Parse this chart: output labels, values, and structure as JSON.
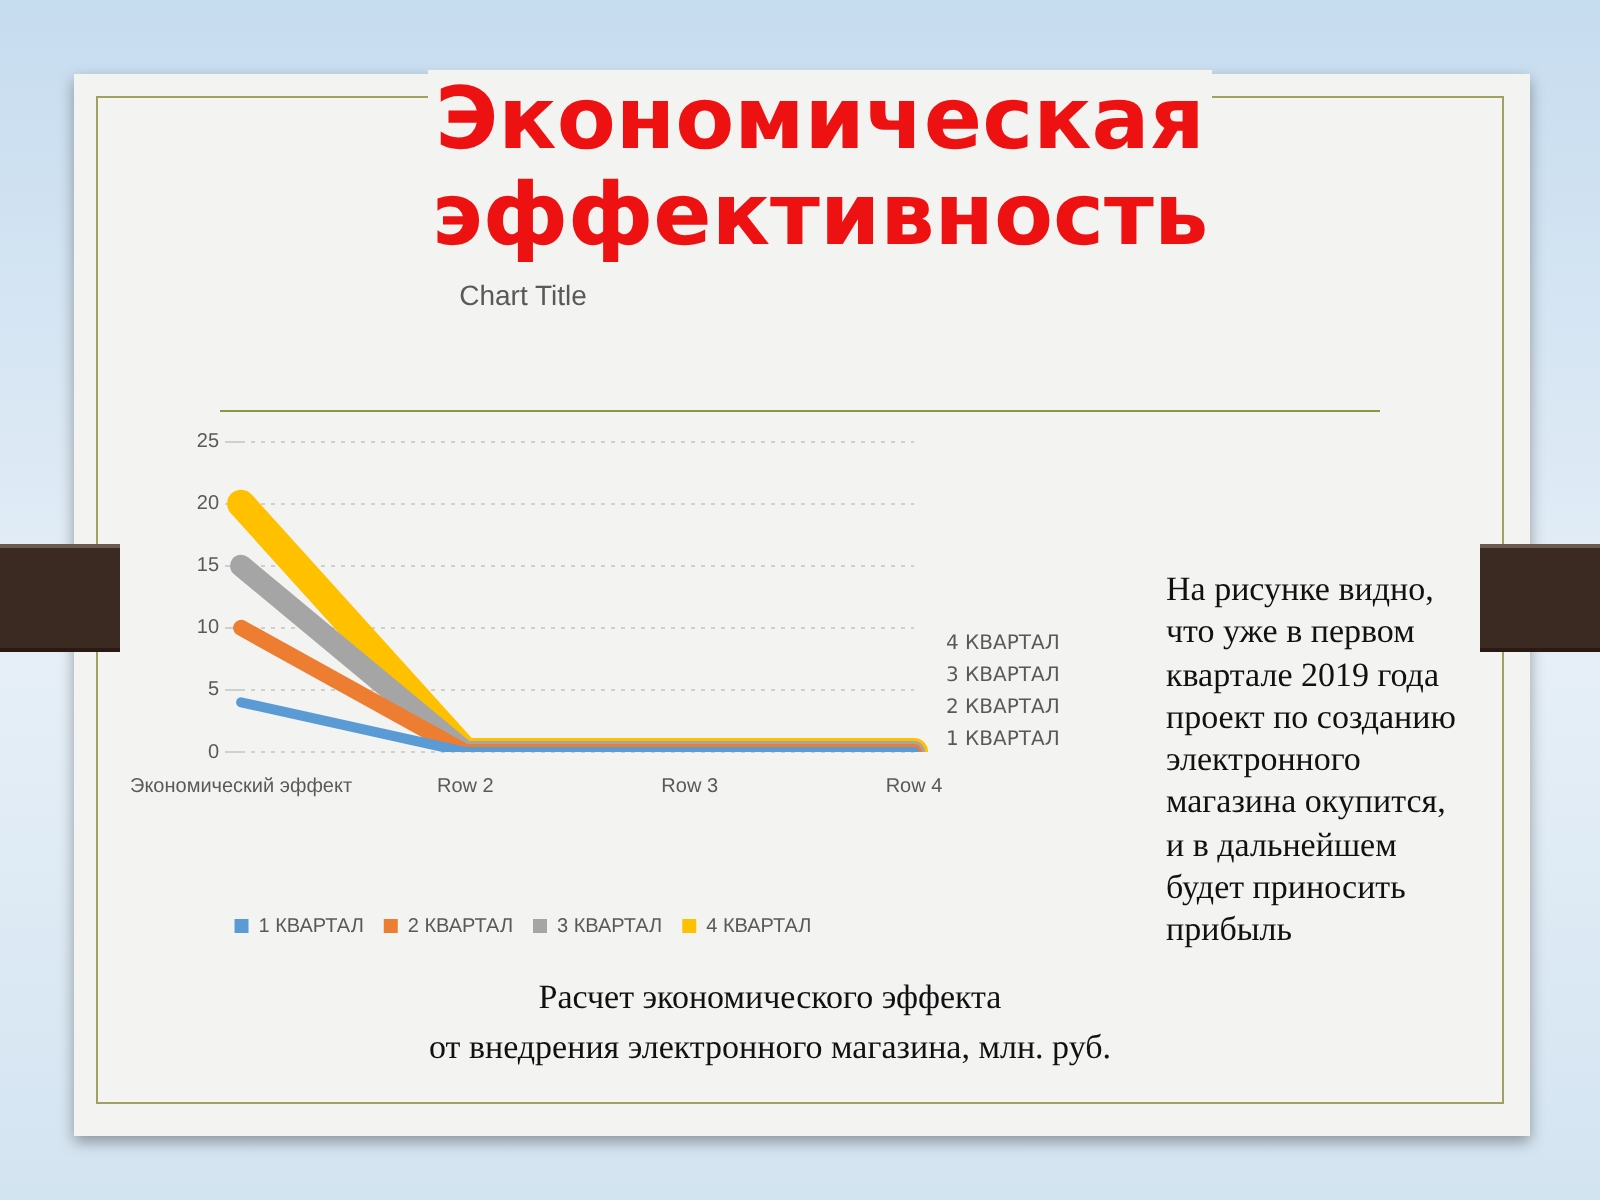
{
  "chart_data": {
    "type": "line",
    "title": "Экономическая эффективность",
    "subtitle": "Chart Title",
    "categories": [
      "Экономический эффект",
      "Row 2",
      "Row 3",
      "Row 4"
    ],
    "series": [
      {
        "name": "1 КВАРТАЛ",
        "color": "#5b9bd5",
        "values": [
          4,
          0,
          0,
          0
        ]
      },
      {
        "name": "2 КВАРТАЛ",
        "color": "#ed7d31",
        "values": [
          10,
          0,
          0,
          0
        ]
      },
      {
        "name": "3 КВАРТАЛ",
        "color": "#a5a5a5",
        "values": [
          15,
          0,
          0,
          0
        ]
      },
      {
        "name": "4 КВАРТАЛ",
        "color": "#ffc000",
        "values": [
          20,
          0,
          0,
          0
        ]
      }
    ],
    "ylim": [
      0,
      25
    ],
    "yticks": [
      0,
      5,
      10,
      15,
      20,
      25
    ],
    "grid": "y",
    "legend": "bottom",
    "annotations": [
      "На рисунке видно, что уже в первом квартале 2019 года проект по созданию электронного магазина окупится, и в дальнейшем будет приносить прибыль",
      "Расчет экономического эффекта\nот внедрения электронного магазина, млн. руб."
    ]
  }
}
